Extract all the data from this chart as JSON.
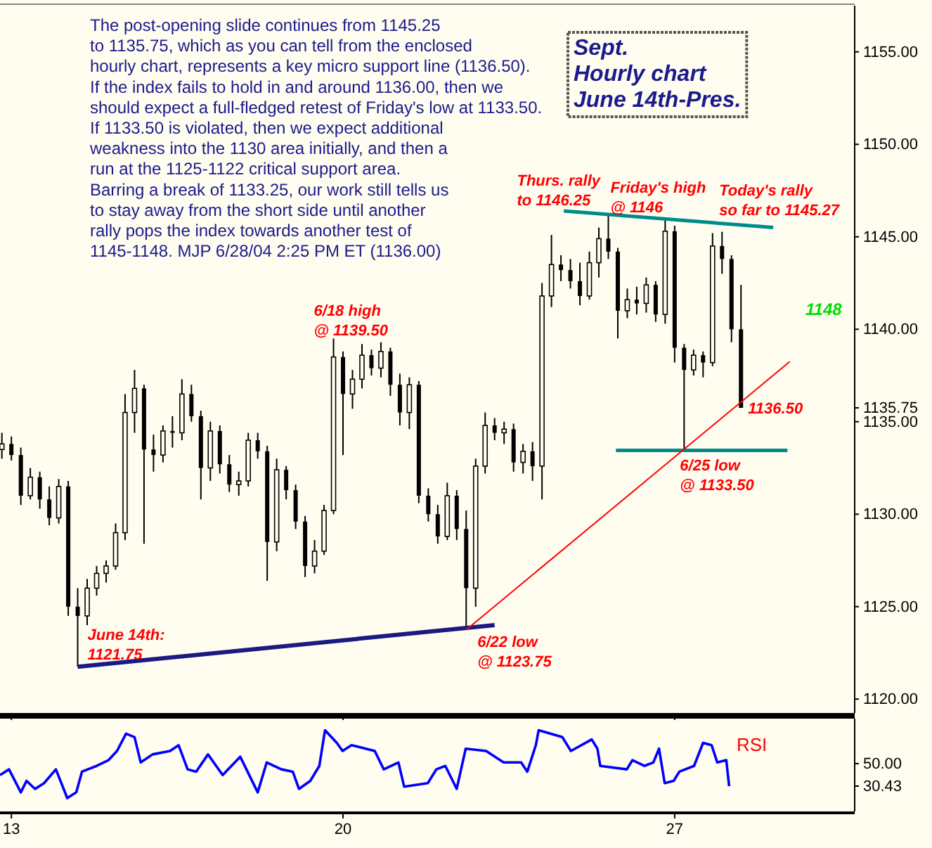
{
  "chart_data": [
    {
      "type": "candlestick",
      "title": "Sept.\nHourly chart\nJune 14th-Pres.",
      "x": [
        12.8,
        13.0,
        13.2,
        13.4,
        13.6,
        13.8,
        14.0,
        14.2,
        14.4,
        14.6,
        14.8,
        15.0,
        15.2,
        15.4,
        15.6,
        15.8,
        16.0,
        16.2,
        16.4,
        16.6,
        16.8,
        17.0,
        17.2,
        17.4,
        17.6,
        17.8,
        18.0,
        18.2,
        18.4,
        18.6,
        18.8,
        19.0,
        19.2,
        19.4,
        19.6,
        19.8,
        20.0,
        20.2,
        20.4,
        20.6,
        20.8,
        21.0,
        21.2,
        21.4,
        21.6,
        21.8,
        22.0,
        22.2,
        22.4,
        22.6,
        22.8,
        23.0,
        23.2,
        23.4,
        23.6,
        23.8,
        24.0,
        24.2,
        24.4,
        24.6,
        24.8,
        25.0,
        25.2,
        25.4,
        25.6,
        25.8,
        26.0,
        26.2,
        26.4,
        26.6,
        26.8,
        27.0,
        27.2,
        27.4,
        27.6,
        27.8,
        28.0,
        28.2,
        28.4
      ],
      "ohlc": [
        [
          1133.5,
          1134.4,
          1133,
          1133.8
        ],
        [
          1133.8,
          1134.2,
          1132.9,
          1133.2
        ],
        [
          1133.2,
          1133.6,
          1130.5,
          1131
        ],
        [
          1131,
          1132.5,
          1130.8,
          1132
        ],
        [
          1132,
          1132.3,
          1130.3,
          1130.8
        ],
        [
          1130.8,
          1131.5,
          1129.4,
          1129.8
        ],
        [
          1129.8,
          1131.9,
          1129.5,
          1131.5
        ],
        [
          1131.5,
          1131.8,
          1124.5,
          1125
        ],
        [
          1125,
          1126,
          1121.75,
          1124.5
        ],
        [
          1124.5,
          1126.5,
          1124,
          1126
        ],
        [
          1126,
          1127.2,
          1125.6,
          1126.8
        ],
        [
          1126.8,
          1127.5,
          1126.3,
          1127.2
        ],
        [
          1127.2,
          1129.5,
          1127,
          1129
        ],
        [
          1129,
          1136.5,
          1128.6,
          1135.5
        ],
        [
          1135.5,
          1137.8,
          1134.4,
          1136.8
        ],
        [
          1136.8,
          1137,
          1128.4,
          1133.5
        ],
        [
          1133.5,
          1134.3,
          1132.3,
          1133.2
        ],
        [
          1133.2,
          1134.8,
          1132.8,
          1134.5
        ],
        [
          1134.5,
          1135.3,
          1133.6,
          1134.4
        ],
        [
          1134.4,
          1137.3,
          1134,
          1136.5
        ],
        [
          1136.5,
          1137,
          1135,
          1135.3
        ],
        [
          1135.3,
          1135.6,
          1130.8,
          1132.5
        ],
        [
          1132.5,
          1135,
          1131.8,
          1134.5
        ],
        [
          1134.5,
          1134.8,
          1132.2,
          1132.7
        ],
        [
          1132.7,
          1133.2,
          1131.2,
          1131.6
        ],
        [
          1131.6,
          1132.3,
          1131,
          1131.8
        ],
        [
          1131.8,
          1134.4,
          1131.5,
          1134
        ],
        [
          1134,
          1134.4,
          1133,
          1133.4
        ],
        [
          1133.4,
          1133.7,
          1126.4,
          1128.5
        ],
        [
          1128.5,
          1133,
          1128,
          1132.4
        ],
        [
          1132.4,
          1132.6,
          1130.8,
          1131.3
        ],
        [
          1131.3,
          1131.6,
          1129.2,
          1129.6
        ],
        [
          1129.6,
          1129.9,
          1126.6,
          1127.2
        ],
        [
          1127.2,
          1128.6,
          1126.8,
          1128
        ],
        [
          1128,
          1130.5,
          1127.8,
          1130.2
        ],
        [
          1130.2,
          1139.5,
          1130,
          1138.5
        ],
        [
          1138.5,
          1138.8,
          1133.2,
          1136.5
        ],
        [
          1136.5,
          1137.8,
          1135.7,
          1137.3
        ],
        [
          1137.3,
          1139.2,
          1136.8,
          1138.6
        ],
        [
          1138.6,
          1138.9,
          1137.5,
          1137.9
        ],
        [
          1137.9,
          1139.3,
          1137.4,
          1138.8
        ],
        [
          1138.8,
          1139,
          1136.4,
          1137
        ],
        [
          1137,
          1137.6,
          1134.8,
          1135.5
        ],
        [
          1135.5,
          1137.4,
          1134.6,
          1137
        ],
        [
          1137,
          1137.2,
          1130.6,
          1131
        ],
        [
          1131,
          1131.4,
          1129.6,
          1130
        ],
        [
          1130,
          1130.5,
          1128.4,
          1128.8
        ],
        [
          1128.8,
          1131.7,
          1128.6,
          1131
        ],
        [
          1131,
          1131.3,
          1128.6,
          1129.2
        ],
        [
          1129.2,
          1130.2,
          1123.75,
          1126
        ],
        [
          1126,
          1133,
          1125,
          1132.6
        ],
        [
          1132.6,
          1135.5,
          1132.2,
          1134.8
        ],
        [
          1134.8,
          1135.2,
          1134,
          1134.4
        ],
        [
          1134.4,
          1135,
          1133.8,
          1134.6
        ],
        [
          1134.6,
          1134.9,
          1132.3,
          1132.8
        ],
        [
          1132.8,
          1133.8,
          1132.2,
          1133.4
        ],
        [
          1133.4,
          1133.9,
          1131.8,
          1132.6
        ],
        [
          1132.6,
          1142.5,
          1130.8,
          1141.8
        ],
        [
          1141.8,
          1145.1,
          1141.2,
          1143.5
        ],
        [
          1143.5,
          1144,
          1142.6,
          1143.2
        ],
        [
          1143.2,
          1143.8,
          1142.2,
          1142.6
        ],
        [
          1142.6,
          1143.6,
          1141.3,
          1141.8
        ],
        [
          1141.8,
          1144.2,
          1141.6,
          1143.6
        ],
        [
          1143.6,
          1145.5,
          1142.8,
          1144.9
        ],
        [
          1144.9,
          1146.25,
          1143.8,
          1144.2
        ],
        [
          1144.2,
          1144.4,
          1139.5,
          1141
        ],
        [
          1141,
          1142.2,
          1140.6,
          1141.6
        ],
        [
          1141.6,
          1142.3,
          1140.8,
          1141.4
        ],
        [
          1141.4,
          1142.8,
          1140.9,
          1142.4
        ],
        [
          1142.4,
          1142.6,
          1140.4,
          1140.8
        ],
        [
          1140.8,
          1146,
          1140.3,
          1145.3
        ],
        [
          1145.3,
          1145.6,
          1138.2,
          1139
        ],
        [
          1139,
          1139.2,
          1133.5,
          1137.8
        ],
        [
          1137.8,
          1138.9,
          1137.5,
          1138.6
        ],
        [
          1138.6,
          1138.8,
          1137.4,
          1138.2
        ],
        [
          1138.2,
          1145.2,
          1138,
          1144.5
        ],
        [
          1144.5,
          1145.27,
          1143,
          1143.8
        ],
        [
          1143.8,
          1144,
          1139.3,
          1140
        ],
        [
          1140,
          1142.4,
          1135.75,
          1135.75
        ]
      ],
      "series": [
        {
          "type": "line",
          "color": "#1a1a80",
          "x": [
            14.4,
            23.2
          ],
          "values": [
            1121.75,
            1124.0
          ]
        },
        {
          "type": "line",
          "color": "#008b8b",
          "x": [
            24.66,
            29.08
          ],
          "values": [
            1146.4,
            1145.5
          ]
        },
        {
          "type": "line",
          "color": "#008b8b",
          "x": [
            25.76,
            29.38
          ],
          "values": [
            1133.45,
            1133.45
          ]
        },
        {
          "type": "line",
          "color": "#ff0000",
          "x": [
            22.6,
            29.43
          ],
          "values": [
            1123.75,
            1138.25
          ]
        }
      ],
      "xlim": [
        12.76,
        30.8
      ],
      "xticks": [
        13,
        20,
        27
      ],
      "ylim": [
        1119.25,
        1157.5
      ],
      "yticks": [
        {
          "value": 1120,
          "label": "1120.00"
        },
        {
          "value": 1125,
          "label": "1125.00"
        },
        {
          "value": 1130,
          "label": "1130.00"
        },
        {
          "value": 1135,
          "label": "1135.00"
        },
        {
          "value": 1135.75,
          "label": "1135.75"
        },
        {
          "value": 1140,
          "label": "1140.00"
        },
        {
          "value": 1145,
          "label": "1145.00"
        },
        {
          "value": 1150,
          "label": "1150.00"
        },
        {
          "value": 1155,
          "label": "1155.00"
        }
      ],
      "tick_labels": "y",
      "annotations": [
        "The post-opening slide continues from 1145.25\nto 1135.75, which as you can tell from the enclosed\nhourly chart, represents a key micro support line (1136.50).\nIf the index fails to hold in and around 1136.00, then we\nshould expect a full-fledged retest of Friday's low at 1133.50.\nIf 1133.50 is violated, then we expect additional\nweakness into the 1130 area initially, and then a\nrun at the 1125-1122 critical support area.\nBarring a break of 1133.25, our work still tells us\nto stay away from the short side until another\nrally pops the index towards another test of\n1145-1148.  MJP 6/28/04 2:25 PM ET (1136.00)",
        "1148",
        {
          "text": "June 14th:\n1121.75",
          "x": 14.4,
          "y": 1121.75
        },
        {
          "text": "6/18 high\n@ 1139.50",
          "x": 19.8,
          "y": 1139.5
        },
        {
          "text": "6/22 low\n@ 1123.75",
          "x": 22.6,
          "y": 1123.75
        },
        {
          "text": "Thurs. rally\nto 1146.25",
          "x": 25.6,
          "y": 1146.25
        },
        {
          "text": "Friday's high\n@ 1146",
          "x": 26.8,
          "y": 1146
        },
        {
          "text": "Today's rally\nso far to 1145.27",
          "x": 28.0,
          "y": 1145.27
        },
        {
          "text": "6/25 low\n@ 1133.50",
          "x": 27.2,
          "y": 1133.5
        },
        {
          "text": "1136.50",
          "x": 28.4,
          "y": 1136.5
        }
      ]
    },
    {
      "type": "line",
      "x": [
        12.76,
        12.95,
        13.2,
        13.32,
        13.5,
        13.69,
        13.94,
        14.18,
        14.37,
        14.49,
        14.8,
        15.05,
        15.23,
        15.42,
        15.6,
        15.73,
        15.98,
        16.35,
        16.53,
        16.72,
        16.9,
        17.15,
        17.46,
        17.83,
        18.2,
        18.39,
        18.7,
        18.94,
        19.07,
        19.31,
        19.5,
        19.62,
        19.87,
        19.99,
        20.18,
        20.67,
        20.86,
        21.17,
        21.29,
        21.79,
        21.97,
        22.16,
        22.4,
        22.59,
        23.02,
        23.39,
        23.76,
        23.89,
        24.07,
        24.13,
        24.63,
        24.81,
        25.25,
        25.37,
        25.43,
        25.99,
        26.11,
        26.36,
        26.55,
        26.67,
        26.79,
        26.98,
        27.1,
        27.41,
        27.6,
        27.78,
        27.9,
        28.09,
        28.15
      ],
      "series": [
        {
          "color": "#0000ff",
          "values": [
            40,
            45,
            25,
            35,
            28,
            33,
            45,
            20,
            25,
            43,
            48,
            53,
            61,
            76,
            73,
            51,
            58,
            61,
            66,
            45,
            43,
            58,
            40,
            56,
            25,
            51,
            45,
            43,
            28,
            35,
            48,
            79,
            68,
            61,
            66,
            61,
            45,
            51,
            30,
            33,
            45,
            48,
            28,
            63,
            61,
            51,
            51,
            43,
            66,
            79,
            73,
            61,
            71,
            63,
            48,
            45,
            53,
            48,
            51,
            63,
            33,
            35,
            43,
            48,
            68,
            66,
            51,
            53,
            30.43
          ]
        }
      ],
      "xlim": [
        12.76,
        30.8
      ],
      "xticks": [
        13,
        20,
        27
      ],
      "ylim": [
        8.4,
        89.1
      ],
      "yticks": [
        {
          "value": 30.43,
          "label": "30.43"
        },
        {
          "value": 50,
          "label": "50.00"
        }
      ],
      "annotations": [
        "RSI"
      ]
    }
  ]
}
